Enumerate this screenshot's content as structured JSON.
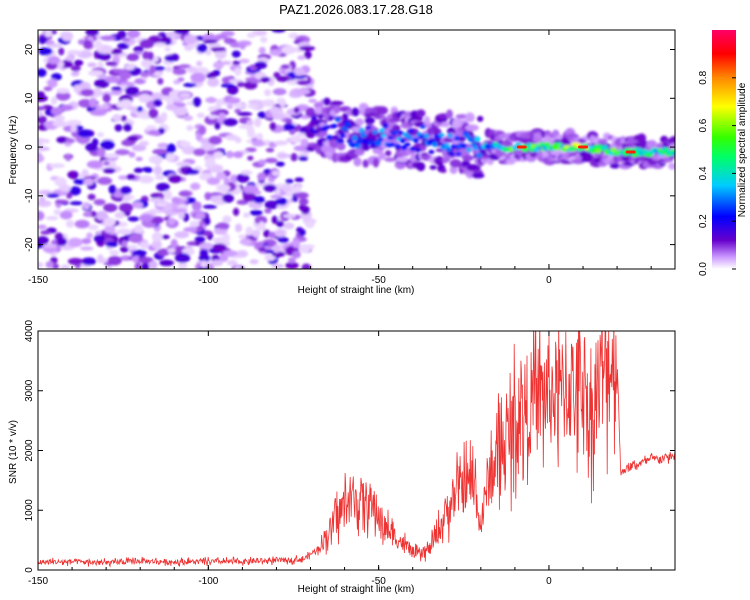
{
  "title": "PAZ1.2026.083.17.28.G18",
  "chart_data": [
    {
      "type": "heatmap",
      "name": "spectrogram",
      "xlabel": "Height of straight line (km)",
      "ylabel": "Frequency (Hz)",
      "xlim": [
        -150,
        37
      ],
      "ylim": [
        -25,
        24
      ],
      "xticks": [
        -150,
        -100,
        -50,
        0
      ],
      "xtick_labels": [
        "-150",
        "-100",
        "-50",
        "0"
      ],
      "yticks": [
        -20,
        -10,
        0,
        10,
        20
      ],
      "ytick_labels": [
        "-20",
        "-10",
        "0",
        "10",
        "20"
      ],
      "noise_region_x": [
        -150,
        -70
      ],
      "signal_track": [
        {
          "x": -70,
          "f": 5,
          "amp": 0.15
        },
        {
          "x": -60,
          "f": 3,
          "amp": 0.25
        },
        {
          "x": -50,
          "f": 2,
          "amp": 0.3
        },
        {
          "x": -40,
          "f": 2,
          "amp": 0.28
        },
        {
          "x": -30,
          "f": 1,
          "amp": 0.3
        },
        {
          "x": -20,
          "f": 0,
          "amp": 0.3
        },
        {
          "x": -10,
          "f": 0,
          "amp": 0.55
        },
        {
          "x": 0,
          "f": 0,
          "amp": 0.5
        },
        {
          "x": 10,
          "f": 0,
          "amp": 0.6
        },
        {
          "x": 20,
          "f": -1,
          "amp": 0.5
        },
        {
          "x": 37,
          "f": -1,
          "amp": 0.45
        }
      ],
      "colorbar": {
        "label": "Normalized spectral amplitude",
        "range": [
          0,
          1
        ],
        "ticks": [
          0.0,
          0.2,
          0.4,
          0.6,
          0.8
        ],
        "tick_labels": [
          "0.0",
          "0.2",
          "0.4",
          "0.6",
          "0.8"
        ],
        "colormap": [
          "#ffffff",
          "#cc99ff",
          "#6600cc",
          "#0000ff",
          "#00ccff",
          "#00ff66",
          "#33ff00",
          "#ffff00",
          "#ff8800",
          "#ff0000",
          "#ff0066"
        ]
      }
    },
    {
      "type": "line",
      "name": "snr",
      "xlabel": "Height of straight line (km)",
      "ylabel": "SNR (10 * v/v)",
      "xlim": [
        -150,
        37
      ],
      "ylim": [
        0,
        4000
      ],
      "xticks": [
        -150,
        -100,
        -50,
        0
      ],
      "xtick_labels": [
        "-150",
        "-100",
        "-50",
        "0"
      ],
      "yticks": [
        0,
        1000,
        2000,
        3000,
        4000
      ],
      "ytick_labels": [
        "0",
        "1000",
        "2000",
        "3000",
        "4000"
      ],
      "color": "#ee3333",
      "series": [
        {
          "name": "SNR",
          "x": [
            -150,
            -140,
            -130,
            -120,
            -110,
            -100,
            -90,
            -80,
            -72,
            -68,
            -64,
            -60,
            -56,
            -52,
            -50,
            -48,
            -45,
            -42,
            -40,
            -38,
            -35,
            -32,
            -30,
            -27,
            -25,
            -22,
            -20,
            -18,
            -15,
            -12,
            -10,
            -8,
            -5,
            -3,
            0,
            3,
            5,
            8,
            10,
            12,
            15,
            18,
            20,
            21,
            25,
            30,
            37
          ],
          "y": [
            130,
            140,
            120,
            150,
            135,
            140,
            140,
            160,
            180,
            350,
            700,
            1100,
            1200,
            1100,
            900,
            700,
            550,
            400,
            300,
            250,
            350,
            700,
            1000,
            1300,
            1400,
            1500,
            700,
            1500,
            1900,
            2200,
            2500,
            2700,
            2800,
            2900,
            3000,
            2900,
            3100,
            3000,
            3300,
            2500,
            3200,
            3500,
            3600,
            1650,
            1750,
            1850,
            1900
          ]
        }
      ]
    }
  ]
}
